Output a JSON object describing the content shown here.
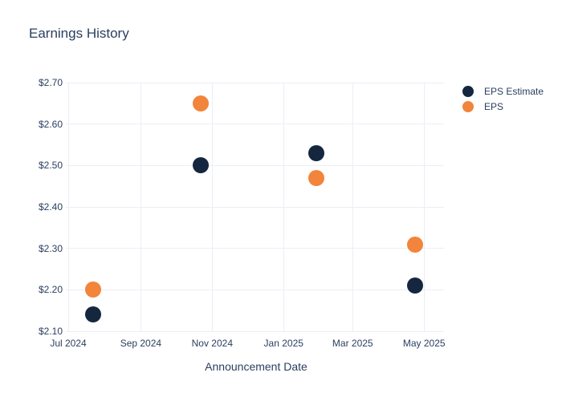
{
  "chart": {
    "title": "Earnings History",
    "xlabel": "Announcement Date"
  },
  "chart_data": {
    "type": "scatter",
    "title": "Earnings History",
    "xlabel": "Announcement Date",
    "ylabel": "",
    "grid": true,
    "legend_position": "right",
    "background": "#ffffff",
    "grid_color": "#ebeef5",
    "text_color": "#2a3f5f",
    "xlim": [
      "2024-07-01",
      "2025-05-18"
    ],
    "ylim": [
      2.1,
      2.7
    ],
    "x_ticks": [
      {
        "label": "Jul 2024",
        "date": "2024-07-01"
      },
      {
        "label": "Sep 2024",
        "date": "2024-09-01"
      },
      {
        "label": "Nov 2024",
        "date": "2024-11-01"
      },
      {
        "label": "Jan 2025",
        "date": "2025-01-01"
      },
      {
        "label": "Mar 2025",
        "date": "2025-03-01"
      },
      {
        "label": "May 2025",
        "date": "2025-05-01"
      }
    ],
    "y_ticks": [
      {
        "value": 2.7,
        "label": "$2.70"
      },
      {
        "value": 2.6,
        "label": "$2.60"
      },
      {
        "value": 2.5,
        "label": "$2.50"
      },
      {
        "value": 2.4,
        "label": "$2.40"
      },
      {
        "value": 2.3,
        "label": "$2.30"
      },
      {
        "value": 2.2,
        "label": "$2.20"
      },
      {
        "value": 2.1,
        "label": "$2.10"
      }
    ],
    "series": [
      {
        "name": "EPS Estimate",
        "color": "#15273f",
        "points": [
          {
            "date": "2024-07-22",
            "value": 2.14
          },
          {
            "date": "2024-10-22",
            "value": 2.5
          },
          {
            "date": "2025-01-29",
            "value": 2.53
          },
          {
            "date": "2025-04-23",
            "value": 2.21
          }
        ]
      },
      {
        "name": "EPS",
        "color": "#f2843b",
        "points": [
          {
            "date": "2024-07-22",
            "value": 2.2
          },
          {
            "date": "2024-10-22",
            "value": 2.65
          },
          {
            "date": "2025-01-29",
            "value": 2.47
          },
          {
            "date": "2025-04-23",
            "value": 2.31
          }
        ]
      }
    ]
  }
}
